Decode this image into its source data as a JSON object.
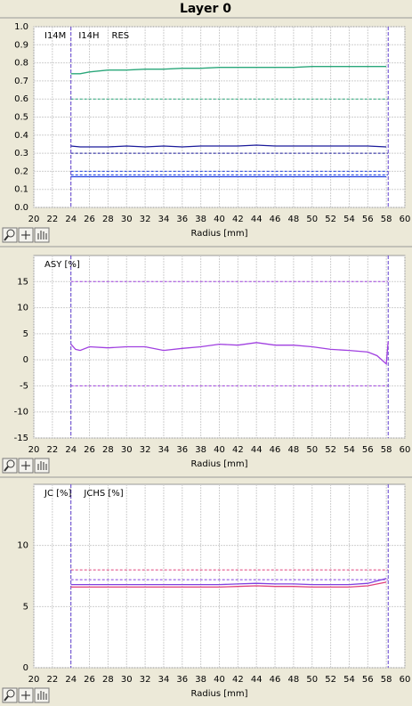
{
  "title": "Layer 0",
  "chart_data": [
    {
      "type": "line",
      "xlabel": "Radius [mm]",
      "x": [
        24,
        25,
        26,
        28,
        30,
        32,
        34,
        36,
        38,
        40,
        42,
        44,
        46,
        48,
        50,
        52,
        54,
        56,
        58
      ],
      "series": [
        {
          "name": "I14M",
          "color": "#2aa77a",
          "values": [
            0.74,
            0.74,
            0.75,
            0.76,
            0.76,
            0.765,
            0.765,
            0.77,
            0.77,
            0.775,
            0.775,
            0.775,
            0.775,
            0.775,
            0.78,
            0.78,
            0.78,
            0.78,
            0.78
          ]
        },
        {
          "name": "I14H",
          "color": "#1a1a9a",
          "values": [
            0.34,
            0.335,
            0.335,
            0.335,
            0.34,
            0.335,
            0.34,
            0.335,
            0.34,
            0.34,
            0.34,
            0.345,
            0.34,
            0.34,
            0.34,
            0.34,
            0.34,
            0.34,
            0.335
          ]
        },
        {
          "name": "RES",
          "color": "#2040e0",
          "values": [
            0.17,
            0.17,
            0.17,
            0.17,
            0.17,
            0.17,
            0.17,
            0.17,
            0.17,
            0.17,
            0.17,
            0.17,
            0.17,
            0.17,
            0.17,
            0.17,
            0.17,
            0.17,
            0.17
          ]
        }
      ],
      "reference_lines": [
        {
          "value": 0.6,
          "color": "#2aa77a"
        },
        {
          "value": 0.3,
          "color": "#1a1a9a"
        },
        {
          "value": 0.2,
          "color": "#2040e0"
        },
        {
          "value": 0.18,
          "color": "#2040e0"
        }
      ],
      "vertical_lines": [
        24,
        58.2
      ],
      "vertical_line_color": "#6040d0",
      "xlim": [
        20,
        60
      ],
      "xticks": [
        20,
        22,
        24,
        26,
        28,
        30,
        32,
        34,
        36,
        38,
        40,
        42,
        44,
        46,
        48,
        50,
        52,
        54,
        56,
        58,
        60
      ],
      "ylim": [
        0,
        1
      ],
      "yticks": [
        {
          "value": 0,
          "label": "0.0"
        },
        0.1,
        0.2,
        0.3,
        0.4,
        0.5,
        0.6,
        0.7,
        0.8,
        0.9,
        {
          "value": 1,
          "label": "1.0"
        }
      ],
      "grid": true
    },
    {
      "type": "line",
      "xlabel": "Radius [mm]",
      "x": [
        24,
        24.5,
        25,
        26,
        28,
        30,
        32,
        34,
        36,
        38,
        40,
        42,
        44,
        46,
        48,
        50,
        52,
        54,
        56,
        57,
        57.5,
        58,
        58.2
      ],
      "series": [
        {
          "name": "ASY [%]",
          "color": "#a040e0",
          "values": [
            3,
            2,
            1.8,
            2.5,
            2.3,
            2.5,
            2.5,
            1.8,
            2.2,
            2.5,
            3,
            2.8,
            3.3,
            2.8,
            2.8,
            2.5,
            2,
            1.8,
            1.5,
            0.8,
            0,
            -0.8,
            3.5
          ]
        }
      ],
      "reference_lines": [
        {
          "value": 15,
          "color": "#a040e0"
        },
        {
          "value": -5,
          "color": "#a040e0"
        }
      ],
      "vertical_lines": [
        24,
        58.2
      ],
      "vertical_line_color": "#6040d0",
      "xlim": [
        20,
        60
      ],
      "xticks": [
        20,
        22,
        24,
        26,
        28,
        30,
        32,
        34,
        36,
        38,
        40,
        42,
        44,
        46,
        48,
        50,
        52,
        54,
        56,
        58,
        60
      ],
      "ylim": [
        -15,
        20
      ],
      "yticks": [
        -15,
        -10,
        -5,
        0,
        5,
        10,
        15
      ],
      "grid": true
    },
    {
      "type": "line",
      "xlabel": "Radius [mm]",
      "x": [
        24,
        26,
        28,
        30,
        32,
        34,
        36,
        38,
        40,
        42,
        44,
        46,
        48,
        50,
        52,
        54,
        56,
        58
      ],
      "series": [
        {
          "name": "JC [%]",
          "color": "#e0407a",
          "values": [
            6.6,
            6.6,
            6.6,
            6.6,
            6.6,
            6.6,
            6.6,
            6.6,
            6.6,
            6.65,
            6.7,
            6.65,
            6.65,
            6.6,
            6.6,
            6.6,
            6.7,
            7.0
          ]
        },
        {
          "name": "JCHS [%]",
          "color": "#8040e0",
          "values": [
            6.8,
            6.8,
            6.8,
            6.8,
            6.8,
            6.8,
            6.8,
            6.8,
            6.8,
            6.85,
            6.9,
            6.85,
            6.85,
            6.8,
            6.8,
            6.8,
            6.9,
            7.3
          ]
        }
      ],
      "reference_lines": [
        {
          "value": 8,
          "color": "#e0407a"
        },
        {
          "value": 7.2,
          "color": "#8040e0"
        }
      ],
      "vertical_lines": [
        24,
        58.2
      ],
      "vertical_line_color": "#6040d0",
      "xlim": [
        20,
        60
      ],
      "xticks": [
        20,
        22,
        24,
        26,
        28,
        30,
        32,
        34,
        36,
        38,
        40,
        42,
        44,
        46,
        48,
        50,
        52,
        54,
        56,
        58,
        60
      ],
      "ylim": [
        0,
        15
      ],
      "yticks": [
        0,
        5,
        10
      ],
      "grid": true
    }
  ]
}
